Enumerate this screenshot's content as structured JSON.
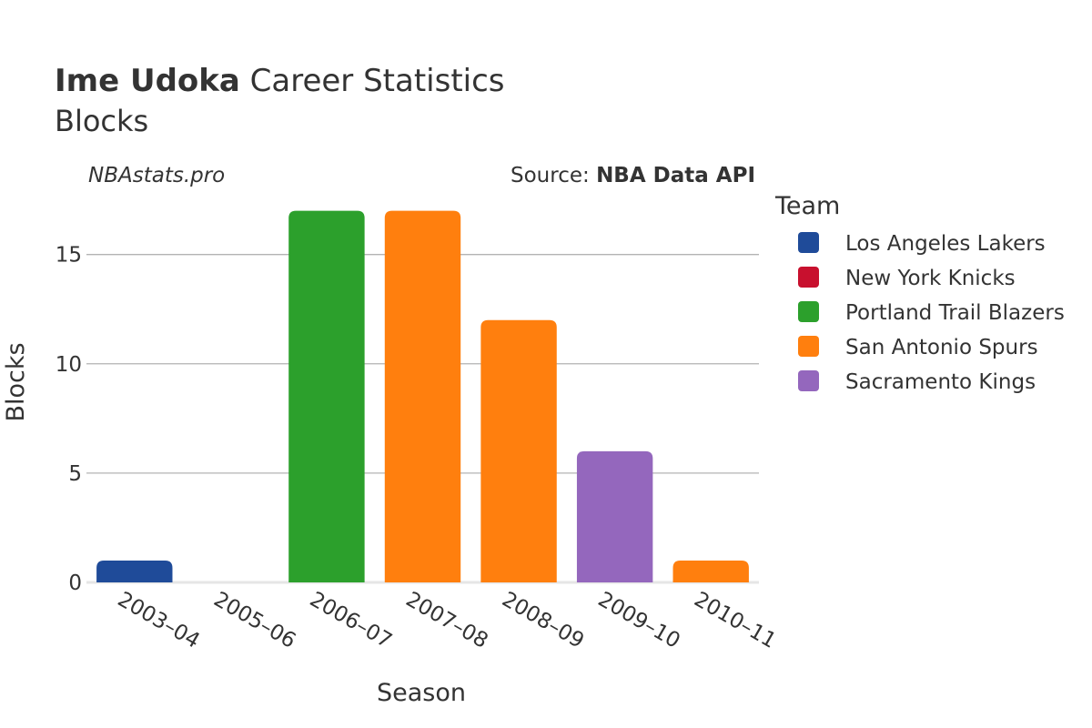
{
  "header": {
    "title_bold": "Ime Udoka",
    "title_rest": " Career Statistics",
    "subtitle": "Blocks"
  },
  "watermark": "NBAstats.pro",
  "source": {
    "prefix": "Source: ",
    "name": "NBA Data API"
  },
  "legend": {
    "title": "Team",
    "items": [
      {
        "label": "Los Angeles Lakers",
        "color": "#1f4b99"
      },
      {
        "label": "New York Knicks",
        "color": "#c8102e"
      },
      {
        "label": "Portland Trail Blazers",
        "color": "#2ca02c"
      },
      {
        "label": "San Antonio Spurs",
        "color": "#ff7f0e"
      },
      {
        "label": "Sacramento Kings",
        "color": "#9467bd"
      }
    ]
  },
  "chart_data": {
    "type": "bar",
    "title": "Ime Udoka Career Statistics",
    "subtitle": "Blocks",
    "xlabel": "Season",
    "ylabel": "Blocks",
    "ylim": [
      0,
      17.9
    ],
    "yticks": [
      0,
      5,
      10,
      15
    ],
    "grid": true,
    "legend_position": "right",
    "categories": [
      "2003–04",
      "2005–06",
      "2006–07",
      "2007–08",
      "2008–09",
      "2009–10",
      "2010–11"
    ],
    "bars": [
      {
        "season": "2003–04",
        "team": "Los Angeles Lakers",
        "value": 1,
        "color": "#1f4b99"
      },
      {
        "season": "2005–06",
        "team": "New York Knicks",
        "value": 0,
        "color": "#c8102e"
      },
      {
        "season": "2006–07",
        "team": "Portland Trail Blazers",
        "value": 17,
        "color": "#2ca02c"
      },
      {
        "season": "2007–08",
        "team": "San Antonio Spurs",
        "value": 17,
        "color": "#ff7f0e"
      },
      {
        "season": "2008–09",
        "team": "San Antonio Spurs",
        "value": 12,
        "color": "#ff7f0e"
      },
      {
        "season": "2009–10",
        "team": "Sacramento Kings",
        "value": 6,
        "color": "#9467bd"
      },
      {
        "season": "2010–11",
        "team": "San Antonio Spurs",
        "value": 1,
        "color": "#ff7f0e"
      }
    ]
  }
}
